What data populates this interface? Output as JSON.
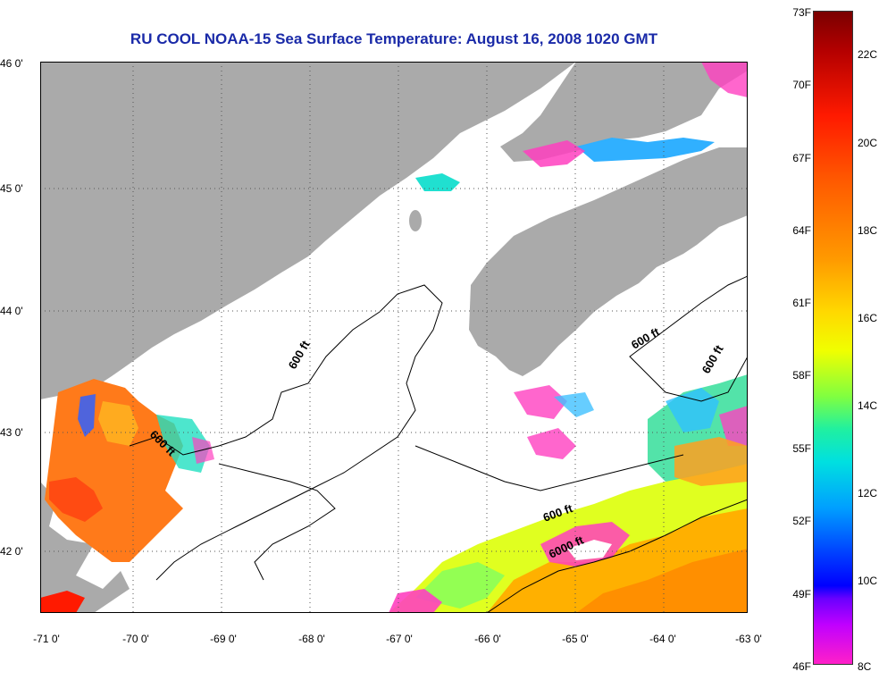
{
  "title": "RU COOL  NOAA-15  Sea Surface Temperature:  August 16, 2008 1020 GMT",
  "lat_labels": [
    "46 0'",
    "45 0'",
    "44 0'",
    "43 0'",
    "42 0'"
  ],
  "lon_labels": [
    "-71 0'",
    "-70 0'",
    "-69 0'",
    "-68 0'",
    "-67 0'",
    "-66 0'",
    "-65 0'",
    "-64 0'",
    "-63 0'"
  ],
  "contour_labels": [
    "600 ft",
    "600 ft",
    "600 ft",
    "600 ft",
    "600 ft",
    "6000 ft"
  ],
  "colorbar": {
    "fahrenheit": [
      "73F",
      "70F",
      "67F",
      "64F",
      "61F",
      "58F",
      "55F",
      "52F",
      "49F",
      "46F"
    ],
    "celsius": [
      "22C",
      "20C",
      "18C",
      "16C",
      "14C",
      "12C",
      "10C",
      "8C"
    ]
  },
  "colors": {
    "land": "#aaaaaa",
    "no_data": "#ffffff",
    "title": "#1a2aa8"
  }
}
